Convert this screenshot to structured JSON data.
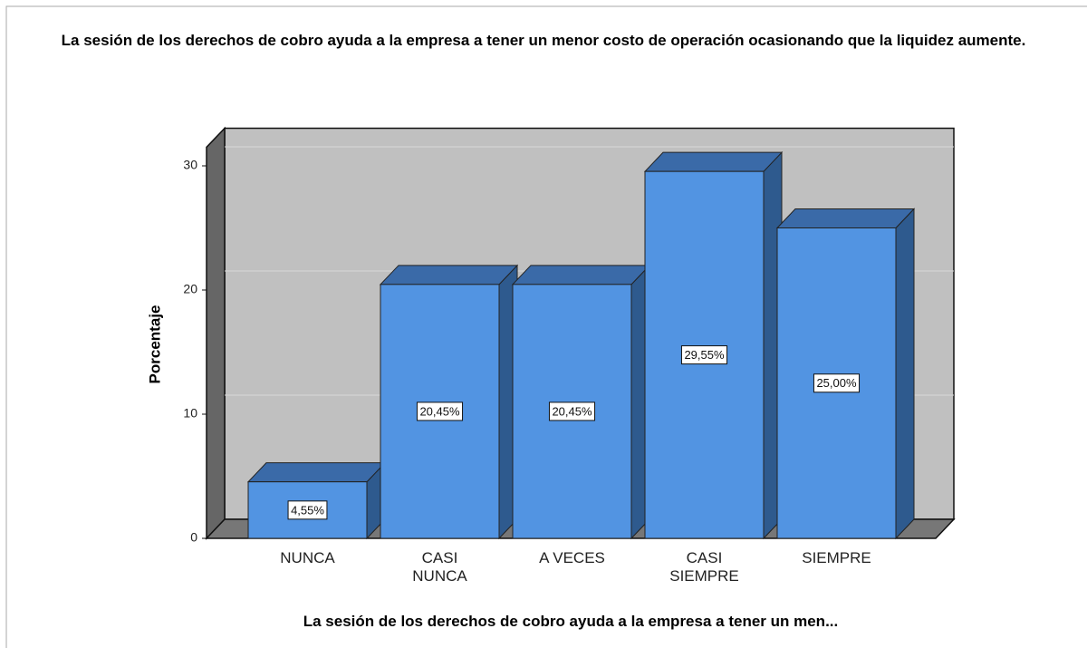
{
  "chart_data": {
    "type": "bar",
    "title": "La sesión de los derechos de cobro ayuda a la empresa a tener un menor costo de operación ocasionando que la liquidez aumente.",
    "x_label": "La sesión de los derechos de cobro ayuda a la empresa a tener un men...",
    "y_label": "Porcentaje",
    "categories": [
      "NUNCA",
      "CASI NUNCA",
      "A VECES",
      "CASI SIEMPRE",
      "SIEMPRE"
    ],
    "values": [
      4.55,
      20.45,
      20.45,
      29.55,
      25.0
    ],
    "value_labels": [
      "4,55%",
      "20,45%",
      "20,45%",
      "29,55%",
      "25,00%"
    ],
    "color": "#5294e2",
    "ylim": [
      0,
      31.5
    ],
    "yticks": [
      0,
      10,
      20,
      30
    ],
    "grid": true
  }
}
